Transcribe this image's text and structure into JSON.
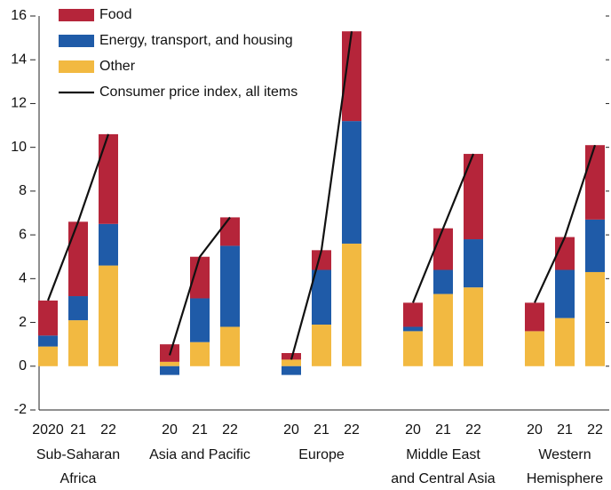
{
  "chart_data": {
    "type": "bar",
    "stacked": true,
    "categories": [
      "2020",
      "21",
      "22",
      "20",
      "21",
      "22",
      "20",
      "21",
      "22",
      "20",
      "21",
      "22",
      "20",
      "21",
      "22"
    ],
    "groups": [
      {
        "label": [
          "Sub-Saharan",
          "Africa"
        ]
      },
      {
        "label": [
          "Asia and Pacific"
        ]
      },
      {
        "label": [
          "Europe"
        ]
      },
      {
        "label": [
          "Middle East",
          "and Central Asia"
        ]
      },
      {
        "label": [
          "Western",
          "Hemisphere"
        ]
      }
    ],
    "series": [
      {
        "name": "Other",
        "color": "#f2b941",
        "values": [
          0.9,
          2.1,
          4.6,
          0.2,
          1.1,
          1.8,
          0.3,
          1.9,
          5.6,
          1.6,
          3.3,
          3.6,
          1.6,
          2.2,
          4.3
        ]
      },
      {
        "name": "Energy, transport, and housing",
        "color": "#1f5ba8",
        "values": [
          0.5,
          1.1,
          1.9,
          -0.4,
          2.0,
          3.7,
          -0.4,
          2.5,
          5.6,
          0.2,
          1.1,
          2.2,
          0,
          2.2,
          2.4
        ]
      },
      {
        "name": "Food",
        "color": "#b5253a",
        "values": [
          1.6,
          3.4,
          4.1,
          0.8,
          1.9,
          1.3,
          0.3,
          0.9,
          4.1,
          1.1,
          1.9,
          3.9,
          1.3,
          1.5,
          3.4
        ]
      },
      {
        "name": "Consumer price index, all items",
        "type": "line",
        "color": "#111111",
        "values": [
          3.0,
          6.6,
          10.6,
          0.5,
          5.0,
          6.8,
          0.3,
          5.3,
          15.3,
          2.9,
          6.3,
          9.7,
          2.9,
          5.9,
          10.1
        ]
      }
    ],
    "legend_order": [
      2,
      1,
      0,
      3
    ],
    "ylim": [
      -2,
      16
    ],
    "yticks": [
      -2,
      0,
      2,
      4,
      6,
      8,
      10,
      12,
      14,
      16
    ]
  }
}
